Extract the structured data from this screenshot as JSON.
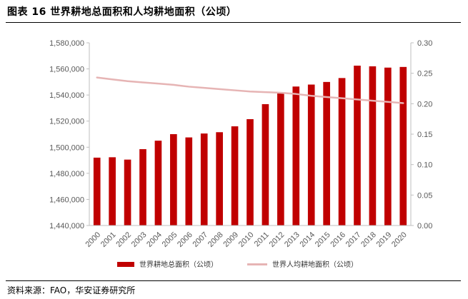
{
  "title": "图表 16 世界耕地总面积和人均耕地面积（公顷）",
  "source": "资料来源：FAO，华安证券研究所",
  "colors": {
    "bar": "#c00000",
    "line": "#e6b4b4",
    "axis": "#bfbfbf",
    "tick_text": "#595959"
  },
  "chart_data": {
    "type": "bar",
    "categories": [
      "2000",
      "2001",
      "2002",
      "2003",
      "2004",
      "2005",
      "2006",
      "2007",
      "2008",
      "2009",
      "2010",
      "2011",
      "2012",
      "2013",
      "2014",
      "2015",
      "2016",
      "2017",
      "2018",
      "2019",
      "2020"
    ],
    "series": [
      {
        "name": "世界耕地总面积（公顷）",
        "type": "bar",
        "axis": "left",
        "values": [
          1492000,
          1492300,
          1490500,
          1498500,
          1505000,
          1510000,
          1507500,
          1510500,
          1511500,
          1516000,
          1521500,
          1533000,
          1541500,
          1546500,
          1548000,
          1550000,
          1553000,
          1562500,
          1562000,
          1561000,
          1561500
        ]
      },
      {
        "name": "世界人均耕地面积（公顷）",
        "type": "line",
        "axis": "right",
        "values": [
          0.243,
          0.24,
          0.237,
          0.235,
          0.233,
          0.231,
          0.228,
          0.226,
          0.224,
          0.222,
          0.22,
          0.219,
          0.218,
          0.216,
          0.213,
          0.211,
          0.209,
          0.207,
          0.205,
          0.203,
          0.201
        ]
      }
    ],
    "y_left": {
      "range": [
        1440000,
        1580000
      ],
      "ticks": [
        1440000,
        1460000,
        1480000,
        1500000,
        1520000,
        1540000,
        1560000,
        1580000
      ],
      "tick_labels": [
        "1,440,000",
        "1,460,000",
        "1,480,000",
        "1,500,000",
        "1,520,000",
        "1,540,000",
        "1,560,000",
        "1,580,000"
      ]
    },
    "y_right": {
      "range": [
        0,
        0.3
      ],
      "ticks": [
        0,
        0.05,
        0.1,
        0.15,
        0.2,
        0.25,
        0.3
      ],
      "tick_labels": [
        "0.00",
        "0.05",
        "0.10",
        "0.15",
        "0.20",
        "0.25",
        "0.30"
      ]
    },
    "grid": false,
    "legend_position": "bottom"
  }
}
